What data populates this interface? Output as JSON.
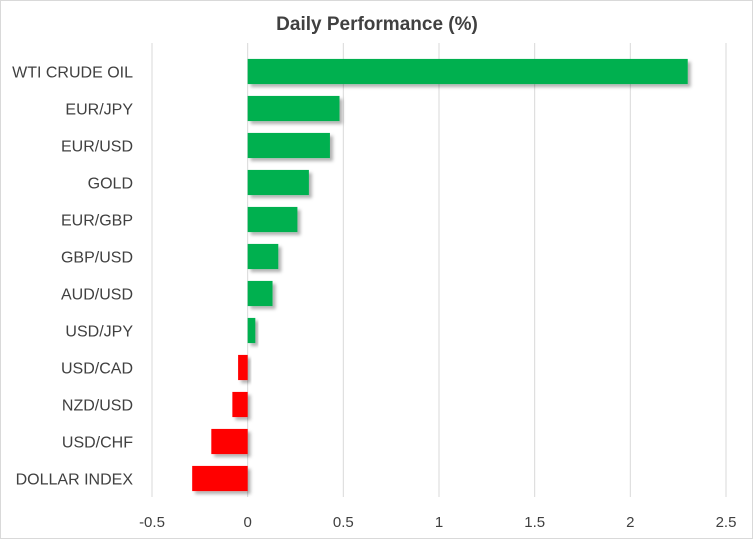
{
  "chart_data": {
    "type": "bar",
    "orientation": "horizontal",
    "title": "Daily Performance  (%)",
    "xlabel": "",
    "ylabel": "",
    "categories": [
      "WTI CRUDE OIL",
      "EUR/JPY",
      "EUR/USD",
      "GOLD",
      "EUR/GBP",
      "GBP/USD",
      "AUD/USD",
      "USD/JPY",
      "USD/CAD",
      "NZD/USD",
      "USD/CHF",
      "DOLLAR INDEX"
    ],
    "values": [
      2.3,
      0.48,
      0.43,
      0.32,
      0.26,
      0.16,
      0.13,
      0.04,
      -0.05,
      -0.08,
      -0.19,
      -0.29
    ],
    "xlim": [
      -0.5,
      2.5
    ],
    "xticks": [
      -0.5,
      0,
      0.5,
      1,
      1.5,
      2,
      2.5
    ],
    "xtick_labels": [
      "-0.5",
      "0",
      "0.5",
      "1",
      "1.5",
      "2",
      "2.5"
    ],
    "grid": true,
    "legend": "none",
    "colors": {
      "positive": "#00b050",
      "negative": "#ff0000",
      "shadow": "#bfbfbf",
      "gridline": "#d9d9d9",
      "text": "#404040"
    }
  }
}
